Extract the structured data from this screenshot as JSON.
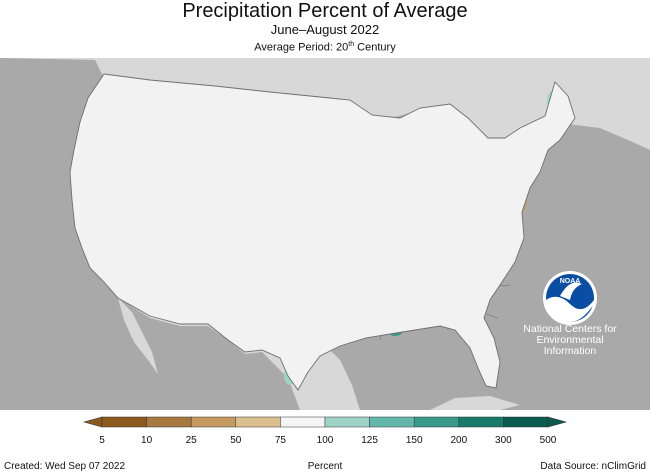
{
  "header": {
    "title": "Precipitation Percent of Average",
    "subtitle": "June–August 2022",
    "period_prefix": "Average Period: 20",
    "period_sup": "th",
    "period_suffix": " Century"
  },
  "logo": {
    "text": "NOAA",
    "center_lines": [
      "National Centers for",
      "Environmental",
      "Information"
    ]
  },
  "colors": {
    "ocean": "#a9a9a9",
    "land_outside": "#d8d8d8",
    "us_base": "#f2f2f2",
    "lakes": "#a9a9a9",
    "borders": "#6f6f6f"
  },
  "legend": {
    "ticks": [
      "5",
      "10",
      "25",
      "50",
      "75",
      "100",
      "125",
      "150",
      "200",
      "300",
      "500"
    ],
    "colors": [
      "#8c5a1e",
      "#a8793e",
      "#c49a60",
      "#dcbf8e",
      "#f5f5f5",
      "#f5f5f5",
      "#9fd3c8",
      "#63b7aa",
      "#3a9a8a",
      "#197a6c",
      "#0b5a4e"
    ],
    "unit": "Percent"
  },
  "footer": {
    "created": "Created: Wed Sep 07 2022",
    "source": "Data Source: nClimGrid"
  }
}
